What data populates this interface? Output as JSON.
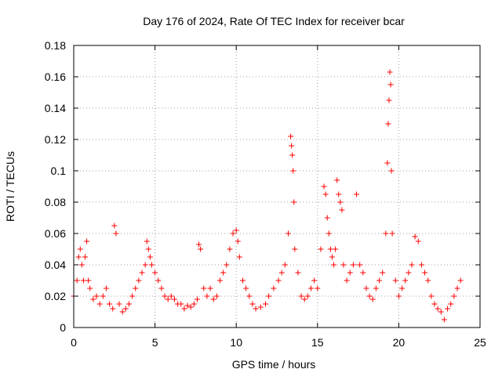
{
  "chart_data": {
    "type": "scatter",
    "title": "Day 176 of 2024, Rate Of TEC Index for receiver bcar",
    "xlabel": "GPS time / hours",
    "ylabel": "ROTI / TECUs",
    "xlim": [
      0,
      25
    ],
    "ylim": [
      0,
      0.18
    ],
    "xticks": [
      0,
      5,
      10,
      15,
      20,
      25
    ],
    "yticks": [
      0,
      0.02,
      0.04,
      0.06,
      0.08,
      0.1,
      0.12,
      0.14,
      0.16,
      0.18
    ],
    "xtick_labels": [
      "0",
      "5",
      "10",
      "15",
      "20",
      "25"
    ],
    "ytick_labels": [
      "0",
      "0.02",
      "0.04",
      "0.06",
      "0.08",
      "0.1",
      "0.12",
      "0.14",
      "0.16",
      "0.18"
    ],
    "grid": true,
    "marker": "plus",
    "color": "#ff0000",
    "series": [
      {
        "x": [
          0.0,
          0.2,
          0.3,
          0.4,
          0.5,
          0.6,
          0.7,
          0.8,
          0.9,
          1.0,
          1.2,
          1.4,
          1.6,
          1.8,
          2.0,
          2.2,
          2.4,
          2.5,
          2.6,
          2.8,
          3.0,
          3.2,
          3.4,
          3.6,
          3.8,
          4.0,
          4.2,
          4.4,
          4.5,
          4.6,
          4.7,
          4.8,
          5.0,
          5.2,
          5.4,
          5.6,
          5.8,
          6.0,
          6.2,
          6.4,
          6.6,
          6.8,
          7.0,
          7.2,
          7.4,
          7.6,
          7.7,
          7.8,
          8.0,
          8.2,
          8.4,
          8.6,
          8.8,
          9.0,
          9.2,
          9.4,
          9.6,
          9.8,
          10.0,
          10.1,
          10.2,
          10.4,
          10.6,
          10.8,
          11.0,
          11.2,
          11.5,
          11.8,
          12.0,
          12.3,
          12.6,
          12.8,
          13.0,
          13.2,
          13.35,
          13.4,
          13.45,
          13.5,
          13.55,
          13.6,
          13.8,
          14.0,
          14.2,
          14.4,
          14.6,
          14.8,
          15.0,
          15.2,
          15.4,
          15.5,
          15.6,
          15.7,
          15.8,
          15.9,
          16.0,
          16.1,
          16.2,
          16.3,
          16.4,
          16.5,
          16.6,
          16.8,
          17.0,
          17.2,
          17.4,
          17.6,
          17.8,
          18.0,
          18.2,
          18.4,
          18.6,
          18.8,
          19.0,
          19.2,
          19.3,
          19.35,
          19.4,
          19.45,
          19.5,
          19.55,
          19.6,
          19.8,
          20.0,
          20.2,
          20.4,
          20.6,
          20.8,
          21.0,
          21.2,
          21.4,
          21.6,
          21.8,
          22.0,
          22.2,
          22.4,
          22.6,
          22.8,
          23.0,
          23.2,
          23.4,
          23.6,
          23.8
        ],
        "y": [
          0.02,
          0.03,
          0.045,
          0.05,
          0.04,
          0.03,
          0.045,
          0.055,
          0.03,
          0.025,
          0.018,
          0.02,
          0.015,
          0.02,
          0.025,
          0.015,
          0.012,
          0.065,
          0.06,
          0.015,
          0.01,
          0.012,
          0.015,
          0.02,
          0.025,
          0.03,
          0.035,
          0.04,
          0.055,
          0.05,
          0.045,
          0.04,
          0.035,
          0.03,
          0.025,
          0.02,
          0.018,
          0.02,
          0.018,
          0.015,
          0.015,
          0.012,
          0.014,
          0.013,
          0.015,
          0.018,
          0.053,
          0.05,
          0.025,
          0.02,
          0.025,
          0.018,
          0.02,
          0.03,
          0.035,
          0.04,
          0.05,
          0.06,
          0.062,
          0.055,
          0.045,
          0.03,
          0.025,
          0.02,
          0.015,
          0.012,
          0.013,
          0.015,
          0.02,
          0.025,
          0.03,
          0.035,
          0.04,
          0.06,
          0.122,
          0.116,
          0.11,
          0.1,
          0.08,
          0.05,
          0.035,
          0.02,
          0.018,
          0.02,
          0.025,
          0.03,
          0.025,
          0.05,
          0.09,
          0.085,
          0.07,
          0.06,
          0.05,
          0.045,
          0.04,
          0.05,
          0.094,
          0.085,
          0.08,
          0.075,
          0.04,
          0.03,
          0.035,
          0.04,
          0.085,
          0.04,
          0.035,
          0.025,
          0.02,
          0.018,
          0.025,
          0.03,
          0.035,
          0.06,
          0.105,
          0.13,
          0.145,
          0.163,
          0.155,
          0.1,
          0.06,
          0.03,
          0.02,
          0.025,
          0.03,
          0.035,
          0.04,
          0.058,
          0.055,
          0.04,
          0.035,
          0.03,
          0.02,
          0.015,
          0.012,
          0.01,
          0.005,
          0.012,
          0.015,
          0.02,
          0.025,
          0.03
        ]
      }
    ]
  }
}
